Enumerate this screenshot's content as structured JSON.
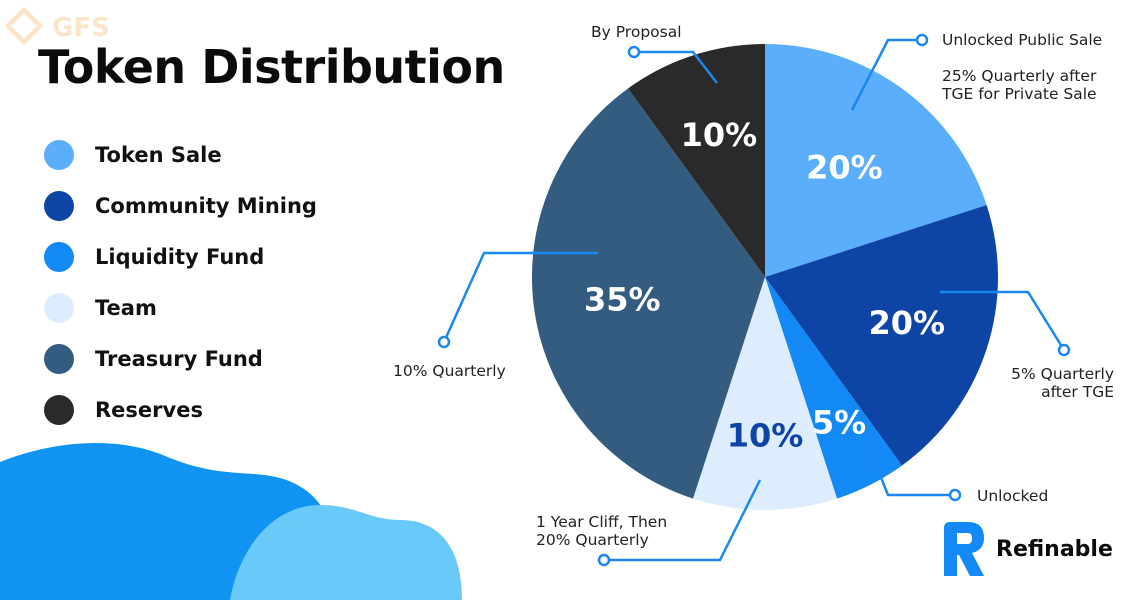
{
  "header": {
    "title": "Token Distribution"
  },
  "watermark": {
    "text": "GFS"
  },
  "brand": {
    "name": "Refinable"
  },
  "colors": {
    "token_sale": "#5aaefb",
    "community_mining": "#0d44a6",
    "liquidity_fund": "#1289f5",
    "team": "#deedfd",
    "treasury_fund": "#335c80",
    "reserves": "#2a2a2a",
    "callout": "#1b87f0"
  },
  "icons": {
    "watermark": "gfs-logo-icon",
    "brand": "refinable-logo-icon",
    "decoration": "wave-blob"
  },
  "chart_data": {
    "type": "pie",
    "title": "Token Distribution",
    "legend_placement": "left",
    "slices": [
      {
        "name": "Token Sale",
        "value": 20,
        "label": "20%",
        "note": [
          "Unlocked Public Sale",
          "",
          "25% Quarterly after",
          "TGE for Private Sale"
        ],
        "color": "#5aaefb",
        "text_color": "#ffffff"
      },
      {
        "name": "Community Mining",
        "value": 20,
        "label": "20%",
        "note": [
          "5% Quarterly",
          "after TGE"
        ],
        "color": "#0d44a6",
        "text_color": "#ffffff"
      },
      {
        "name": "Liquidity Fund",
        "value": 5,
        "label": "5%",
        "note": [
          "Unlocked"
        ],
        "color": "#1289f5",
        "text_color": "#ffffff"
      },
      {
        "name": "Team",
        "value": 10,
        "label": "10%",
        "note": [
          "1 Year Cliff, Then",
          "20% Quarterly"
        ],
        "color": "#deedfd",
        "text_color": "#0d44a6"
      },
      {
        "name": "Treasury Fund",
        "value": 35,
        "label": "35%",
        "note": [
          "10% Quarterly"
        ],
        "color": "#335c80",
        "text_color": "#ffffff"
      },
      {
        "name": "Reserves",
        "value": 10,
        "label": "10%",
        "note": [
          "By Proposal"
        ],
        "color": "#2a2a2a",
        "text_color": "#ffffff"
      }
    ]
  }
}
